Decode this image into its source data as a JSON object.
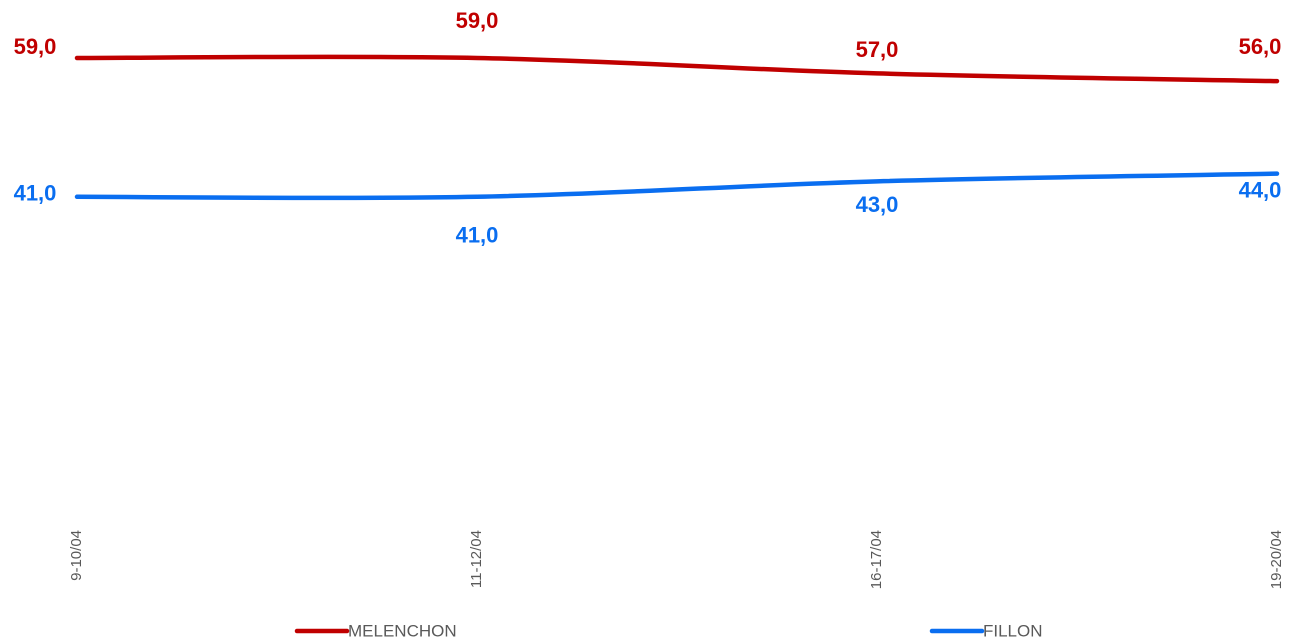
{
  "chart_data": {
    "type": "line",
    "categories": [
      "9-10/04",
      "11-12/04",
      "16-17/04",
      "19-20/04"
    ],
    "series": [
      {
        "name": "MELENCHON",
        "color": "#c00000",
        "values": [
          59,
          59,
          57,
          56
        ],
        "value_labels": [
          "59,0",
          "59,0",
          "57,0",
          "56,0"
        ]
      },
      {
        "name": "FILLON",
        "color": "#0a6ef0",
        "values": [
          41,
          41,
          43,
          44
        ],
        "value_labels": [
          "41,0",
          "41,0",
          "43,0",
          "44,0"
        ]
      }
    ],
    "ylim": [
      0,
      65
    ]
  }
}
